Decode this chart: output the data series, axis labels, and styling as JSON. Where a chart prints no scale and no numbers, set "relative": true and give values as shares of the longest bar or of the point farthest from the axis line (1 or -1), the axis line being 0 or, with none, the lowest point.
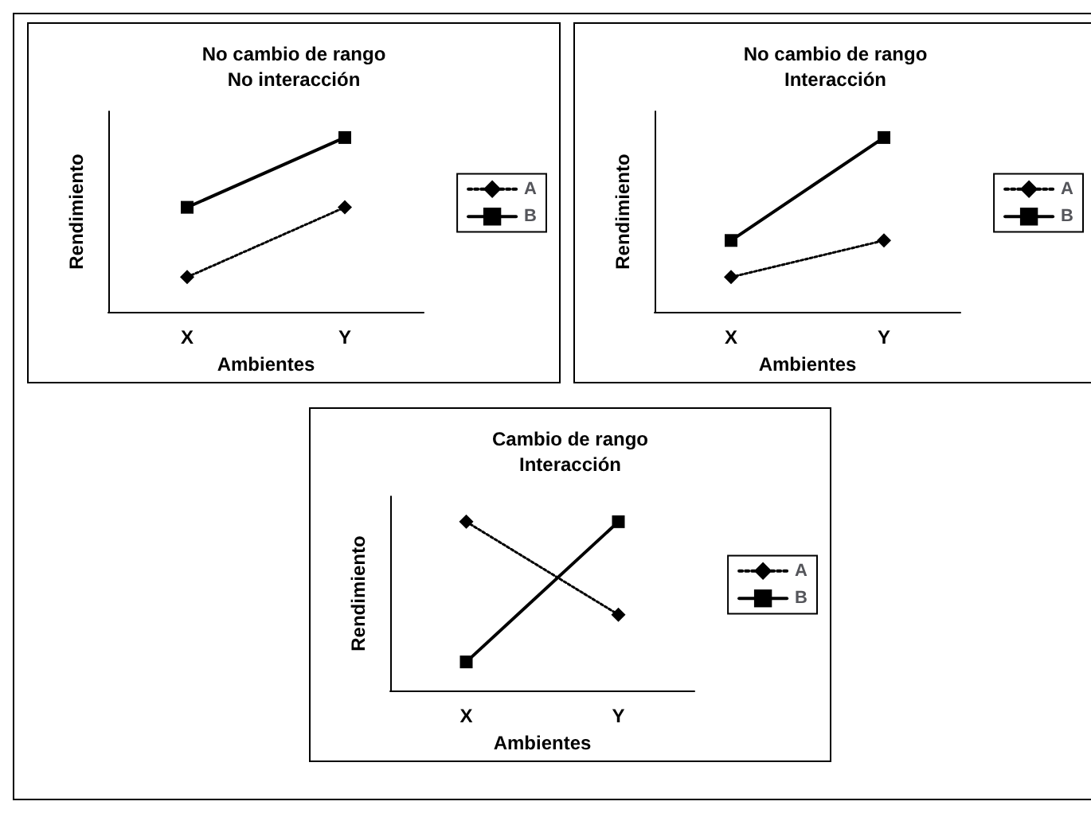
{
  "chart_data": [
    {
      "type": "line",
      "title": "No cambio de rango",
      "subtitle": "No interacción",
      "xlabel": "Ambientes",
      "ylabel": "Rendimiento",
      "categories": [
        "X",
        "Y"
      ],
      "relative": true,
      "legend": "right",
      "grid": false,
      "series": [
        {
          "name": "A",
          "color": "#000000",
          "values": [
            0.2,
            0.6
          ],
          "marker": "diamond",
          "line_style": "dotted"
        },
        {
          "name": "B",
          "color": "#000000",
          "values": [
            0.6,
            1
          ],
          "marker": "square",
          "line_style": "solid"
        }
      ]
    },
    {
      "type": "line",
      "title": "No cambio de rango",
      "subtitle": "Interacción",
      "xlabel": "Ambientes",
      "ylabel": "Rendimiento",
      "categories": [
        "X",
        "Y"
      ],
      "relative": true,
      "legend": "right",
      "grid": false,
      "series": [
        {
          "name": "A",
          "color": "#000000",
          "values": [
            0.2,
            0.41
          ],
          "marker": "diamond",
          "line_style": "dotted"
        },
        {
          "name": "B",
          "color": "#000000",
          "values": [
            0.41,
            1
          ],
          "marker": "square",
          "line_style": "solid"
        }
      ]
    },
    {
      "type": "line",
      "title": "Cambio de rango",
      "subtitle": "Interacción",
      "xlabel": "Ambientes",
      "ylabel": "Rendimiento",
      "categories": [
        "X",
        "Y"
      ],
      "relative": true,
      "legend": "right",
      "grid": false,
      "series": [
        {
          "name": "A",
          "color": "#000000",
          "values": [
            1,
            0.45
          ],
          "marker": "diamond",
          "line_style": "dotted"
        },
        {
          "name": "B",
          "color": "#000000",
          "values": [
            0.17,
            1
          ],
          "marker": "square",
          "line_style": "solid"
        }
      ]
    }
  ]
}
